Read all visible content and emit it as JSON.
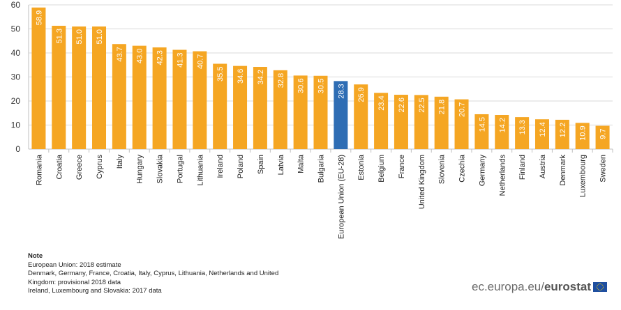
{
  "chart_data": {
    "type": "bar",
    "categories": [
      "Romania",
      "Croatia",
      "Greece",
      "Cyprus",
      "Italy",
      "Hungary",
      "Slovakia",
      "Portugal",
      "Lithuania",
      "Ireland",
      "Poland",
      "Spain",
      "Latvia",
      "Malta",
      "Bulgaria",
      "European Union (EU-28)",
      "Estonia",
      "Belgium",
      "France",
      "United Kingdom",
      "Slovenia",
      "Czechia",
      "Germany",
      "Netherlands",
      "Finland",
      "Austria",
      "Denmark",
      "Luxembourg",
      "Sweden"
    ],
    "values": [
      58.9,
      51.3,
      51.0,
      51.0,
      43.7,
      43.0,
      42.3,
      41.3,
      40.7,
      35.5,
      34.6,
      34.2,
      32.8,
      30.6,
      30.5,
      28.3,
      26.9,
      23.4,
      22.6,
      22.5,
      21.8,
      20.7,
      14.5,
      14.2,
      13.3,
      12.4,
      12.2,
      10.9,
      9.7
    ],
    "ylim": [
      0,
      60
    ],
    "yticks": [
      0,
      10,
      20,
      30,
      40,
      50,
      60
    ],
    "grid": true,
    "colors": {
      "default": "#f5a623",
      "highlight": "#2e6db4",
      "highlight_category": "European Union (EU-28)"
    }
  },
  "note": {
    "title": "Note",
    "lines": [
      "European Union: 2018  estimate",
      "Denmark, Germany, France, Croatia, Italy, Cyprus, Lithuania, Netherlands and United",
      "Kingdom: provisional 2018 data",
      "Ireland, Luxembourg and Slovakia: 2017 data"
    ]
  },
  "logo": {
    "prefix": "ec.europa.eu/",
    "brand": "eurostat"
  }
}
